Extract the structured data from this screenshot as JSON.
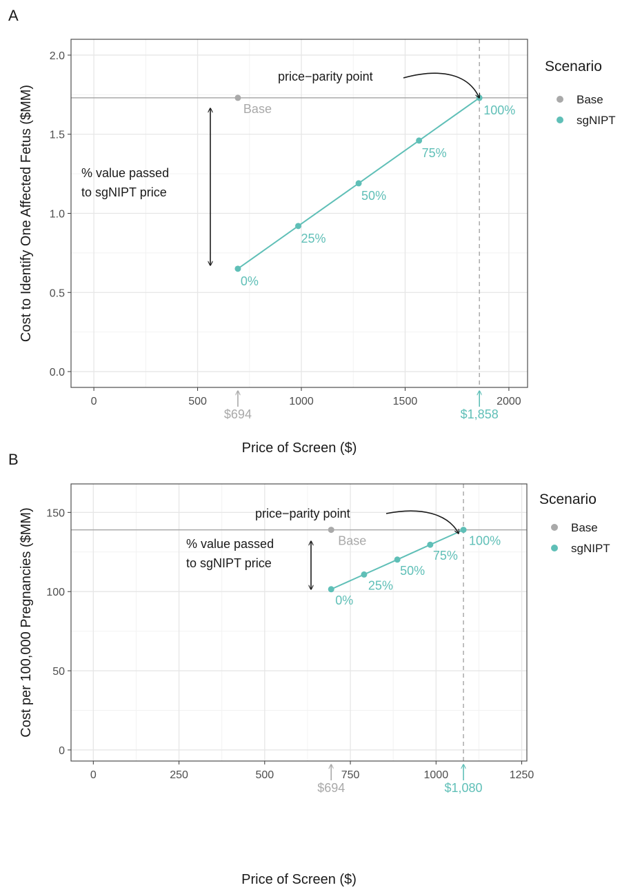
{
  "colors": {
    "base": "#a9a9a9",
    "sgnipt": "#5fbfb7",
    "grid_major": "#e6e6e6",
    "grid_minor": "#f2f2f2",
    "panel_border": "#4d4d4d",
    "text": "#1a1a1a",
    "tick_text": "#4d4d4d"
  },
  "chart_data": [
    {
      "panel_label": "A",
      "type": "line",
      "xlabel": "Price of Screen ($)",
      "ylabel": "Cost to Identify One Affected Fetus ($MM)",
      "xlim": [
        -110,
        2090
      ],
      "ylim": [
        -0.1,
        2.1
      ],
      "xticks": [
        0,
        500,
        1000,
        1500,
        2000
      ],
      "xtick_labels": [
        "0",
        "500",
        "1000",
        "1500",
        "2000"
      ],
      "yticks": [
        0.0,
        0.5,
        1.0,
        1.5,
        2.0
      ],
      "ytick_labels": [
        "0.0",
        "0.5",
        "1.0",
        "1.5",
        "2.0"
      ],
      "base_value": 1.73,
      "base_point": {
        "x": 694,
        "y": 1.73,
        "label": "Base"
      },
      "series": [
        {
          "name": "sgNIPT",
          "points": [
            {
              "x": 694,
              "y": 0.65,
              "label": "0%"
            },
            {
              "x": 985,
              "y": 0.92,
              "label": "25%"
            },
            {
              "x": 1276,
              "y": 1.19,
              "label": "50%"
            },
            {
              "x": 1567,
              "y": 1.46,
              "label": "75%"
            },
            {
              "x": 1858,
              "y": 1.73,
              "label": "100%"
            }
          ]
        }
      ],
      "parity_x": 1858,
      "annotations": {
        "parity": "price−parity point",
        "value_passed_line1": "% value passed",
        "value_passed_line2": "to sgNIPT price",
        "base_price_label": "$694",
        "parity_price_label": "$1,858"
      },
      "legend": {
        "title": "Scenario",
        "position": "right",
        "items": [
          "Base",
          "sgNIPT"
        ]
      }
    },
    {
      "panel_label": "B",
      "type": "line",
      "xlabel": "Price of Screen ($)",
      "ylabel": "Cost per 100,000 Pregnancies ($MM)",
      "xlim": [
        -65,
        1265
      ],
      "ylim": [
        -7,
        168
      ],
      "xticks": [
        0,
        250,
        500,
        750,
        1000,
        1250
      ],
      "xtick_labels": [
        "0",
        "250",
        "500",
        "750",
        "1000",
        "1250"
      ],
      "yticks": [
        0,
        50,
        100,
        150
      ],
      "ytick_labels": [
        "0",
        "50",
        "100",
        "150"
      ],
      "base_value": 139,
      "base_point": {
        "x": 694,
        "y": 139,
        "label": "Base"
      },
      "series": [
        {
          "name": "sgNIPT",
          "points": [
            {
              "x": 694,
              "y": 101.5,
              "label": "0%"
            },
            {
              "x": 790,
              "y": 110.8,
              "label": "25%"
            },
            {
              "x": 887,
              "y": 120.2,
              "label": "50%"
            },
            {
              "x": 983,
              "y": 129.6,
              "label": "75%"
            },
            {
              "x": 1080,
              "y": 139,
              "label": "100%"
            }
          ]
        }
      ],
      "parity_x": 1080,
      "annotations": {
        "parity": "price−parity point",
        "value_passed_line1": "% value passed",
        "value_passed_line2": "to sgNIPT price",
        "base_price_label": "$694",
        "parity_price_label": "$1,080"
      },
      "legend": {
        "title": "Scenario",
        "position": "right",
        "items": [
          "Base",
          "sgNIPT"
        ]
      }
    }
  ]
}
